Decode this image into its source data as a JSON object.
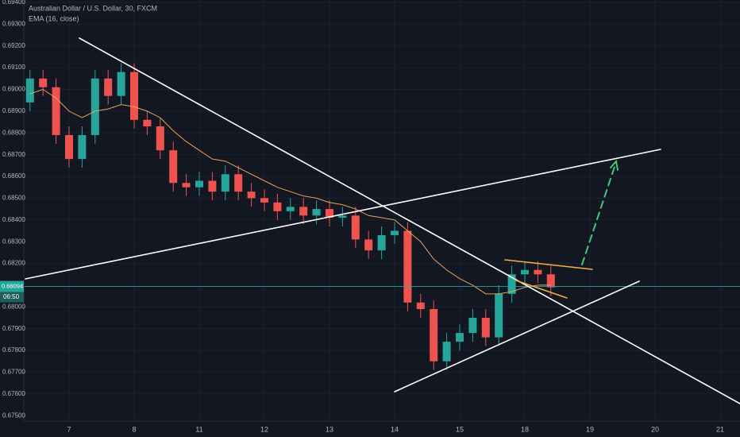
{
  "chart_data": {
    "type": "candlestick",
    "title": "Australian Dollar / U.S. Dollar, 30, FXCM",
    "indicator": "EMA (16, close)",
    "xlim": [
      0.305,
      11.305
    ],
    "ylim": [
      0.67475,
      0.69411
    ],
    "xticks": [
      {
        "value": 1,
        "label": "7"
      },
      {
        "value": 2,
        "label": "8"
      },
      {
        "value": 3,
        "label": "11"
      },
      {
        "value": 4,
        "label": "12"
      },
      {
        "value": 5,
        "label": "13"
      },
      {
        "value": 6,
        "label": "14"
      },
      {
        "value": 7,
        "label": "15"
      },
      {
        "value": 8,
        "label": "18"
      },
      {
        "value": 9,
        "label": "19"
      },
      {
        "value": 10,
        "label": "20"
      },
      {
        "value": 11,
        "label": "21"
      }
    ],
    "yticks": [
      {
        "value": 0.694,
        "label": "0.69400"
      },
      {
        "value": 0.693,
        "label": "0.69300"
      },
      {
        "value": 0.692,
        "label": "0.69200"
      },
      {
        "value": 0.691,
        "label": "0.69100"
      },
      {
        "value": 0.69,
        "label": "0.69000"
      },
      {
        "value": 0.689,
        "label": "0.68900"
      },
      {
        "value": 0.688,
        "label": "0.68800"
      },
      {
        "value": 0.687,
        "label": "0.68700"
      },
      {
        "value": 0.686,
        "label": "0.68600"
      },
      {
        "value": 0.685,
        "label": "0.68500"
      },
      {
        "value": 0.684,
        "label": "0.68400"
      },
      {
        "value": 0.683,
        "label": "0.68300"
      },
      {
        "value": 0.682,
        "label": "0.68200"
      },
      {
        "value": 0.68,
        "label": "0.68000"
      },
      {
        "value": 0.679,
        "label": "0.67900"
      },
      {
        "value": 0.678,
        "label": "0.67800"
      },
      {
        "value": 0.677,
        "label": "0.67700"
      },
      {
        "value": 0.676,
        "label": "0.67600"
      },
      {
        "value": 0.675,
        "label": "0.67500"
      }
    ],
    "up_color": "#26a69a",
    "down_color": "#ef5350",
    "x": [
      0.4,
      0.6,
      0.8,
      1.0,
      1.2,
      1.4,
      1.6,
      1.8,
      2.0,
      2.2,
      2.4,
      2.6,
      2.8,
      3.0,
      3.2,
      3.4,
      3.6,
      3.8,
      4.0,
      4.2,
      4.4,
      4.6,
      4.8,
      5.0,
      5.2,
      5.4,
      5.6,
      5.8,
      6.0,
      6.2,
      6.4,
      6.6,
      6.8,
      7.0,
      7.2,
      7.4,
      7.6,
      7.8,
      8.0,
      8.2,
      8.4
    ],
    "open": [
      0.6894,
      0.6905,
      0.6901,
      0.6879,
      0.6868,
      0.6879,
      0.6905,
      0.6897,
      0.6908,
      0.6886,
      0.6883,
      0.6872,
      0.6857,
      0.6855,
      0.6858,
      0.6853,
      0.6861,
      0.6853,
      0.685,
      0.6848,
      0.6844,
      0.6846,
      0.6842,
      0.6845,
      0.6841,
      0.6842,
      0.6831,
      0.6826,
      0.6833,
      0.6835,
      0.6802,
      0.6799,
      0.6775,
      0.6784,
      0.6788,
      0.6795,
      0.6786,
      0.6806,
      0.6815,
      0.6817,
      0.6815
    ],
    "high": [
      0.6909,
      0.6909,
      0.6905,
      0.6883,
      0.6883,
      0.6909,
      0.6909,
      0.6912,
      0.6912,
      0.689,
      0.6887,
      0.6876,
      0.6861,
      0.6862,
      0.6862,
      0.6865,
      0.6865,
      0.6857,
      0.6854,
      0.6852,
      0.685,
      0.685,
      0.6849,
      0.6849,
      0.6846,
      0.6846,
      0.6835,
      0.6837,
      0.6839,
      0.6839,
      0.6806,
      0.6803,
      0.6788,
      0.6792,
      0.6799,
      0.6799,
      0.681,
      0.6819,
      0.6821,
      0.6821,
      0.6819
    ],
    "low": [
      0.689,
      0.6897,
      0.6875,
      0.6864,
      0.6864,
      0.6875,
      0.6893,
      0.6893,
      0.6882,
      0.6879,
      0.6868,
      0.6853,
      0.6851,
      0.6851,
      0.6849,
      0.6849,
      0.6849,
      0.6846,
      0.6844,
      0.684,
      0.684,
      0.6838,
      0.6838,
      0.6837,
      0.6837,
      0.6827,
      0.6822,
      0.6822,
      0.6829,
      0.6798,
      0.6795,
      0.6771,
      0.6771,
      0.678,
      0.6784,
      0.6782,
      0.6782,
      0.6802,
      0.6811,
      0.6811,
      0.6805
    ],
    "close": [
      0.6905,
      0.6901,
      0.6879,
      0.6868,
      0.6879,
      0.6905,
      0.6897,
      0.6908,
      0.6886,
      0.6883,
      0.6872,
      0.6857,
      0.6855,
      0.6858,
      0.6853,
      0.6861,
      0.6853,
      0.685,
      0.6848,
      0.6844,
      0.6846,
      0.6842,
      0.6845,
      0.6841,
      0.6842,
      0.6831,
      0.6826,
      0.6833,
      0.6835,
      0.6802,
      0.6799,
      0.6775,
      0.6784,
      0.6788,
      0.6795,
      0.6786,
      0.6806,
      0.6815,
      0.6817,
      0.6815,
      0.6809
    ],
    "ema": {
      "color": "#e8a35a",
      "values": [
        0.6898,
        0.69,
        0.6896,
        0.689,
        0.6887,
        0.689,
        0.6891,
        0.6893,
        0.6892,
        0.689,
        0.6887,
        0.6881,
        0.6876,
        0.6872,
        0.6868,
        0.6867,
        0.6864,
        0.6861,
        0.6858,
        0.6855,
        0.6853,
        0.6851,
        0.685,
        0.6848,
        0.6847,
        0.6845,
        0.6842,
        0.6841,
        0.684,
        0.6835,
        0.683,
        0.6822,
        0.6817,
        0.6813,
        0.681,
        0.6806,
        0.6806,
        0.6807,
        0.6809,
        0.681,
        0.681
      ]
    },
    "last_price": 0.68094,
    "countdown": "06:50"
  }
}
